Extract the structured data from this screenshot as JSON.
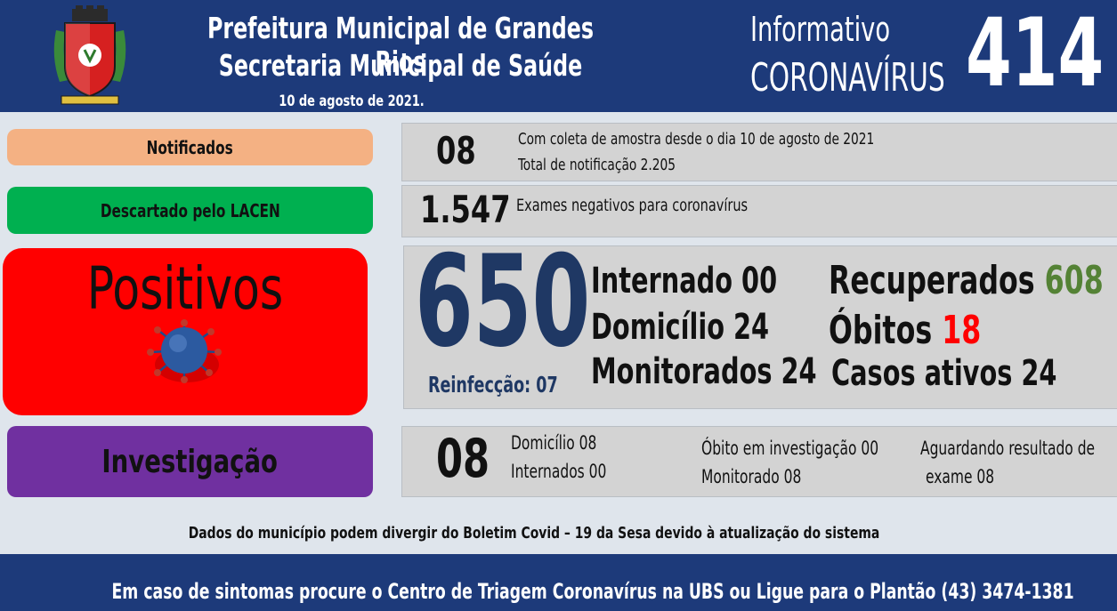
{
  "header": {
    "line1": "Prefeitura Municipal de Grandes Rios",
    "line2": "Secretaria Municipal de Saúde",
    "date": "10 de agosto  de 2021.",
    "info_line1": "Informativo",
    "info_line2": "CORONAVÍRUS",
    "number": "414"
  },
  "notificados": {
    "label": "Notificados",
    "value": "08",
    "line1": "Com coleta de amostra desde o dia 10 de agosto de 2021",
    "line2": "Total de notificação  2.205"
  },
  "descartado": {
    "label": "Descartado  pelo  LACEN",
    "value": "1.547",
    "text": "Exames negativos  para coronavírus"
  },
  "positivos": {
    "label": "Positivos",
    "value": "650",
    "reinfeccao": "Reinfecção:  07",
    "internado": "Internado 00",
    "domicilio": "Domicílio 24",
    "monitorados": "Monitorados 24",
    "recuperados_label": "Recuperados",
    "recuperados_value": "608",
    "obitos_label": "Óbitos",
    "obitos_value": "18",
    "casos_ativos": "Casos ativos 24"
  },
  "investigacao": {
    "label": "Investigação",
    "value": "08",
    "domicilio": "Domicílio 08",
    "internados": "Internados 00",
    "obito": "Óbito  em investigação  00",
    "monitorado": "Monitorado  08",
    "aguardando1": "Aguardando resultado de",
    "aguardando2": "exame 08"
  },
  "disclaimer": "Dados  do  município  podem  divergir  do  Boletim  Covid – 19  da  Sesa  devido  à  atualização  do  sistema",
  "footer": "Em  caso  de  sintomas  procure  o  Centro  de  Triagem  Coronavírus  na  UBS  ou  Ligue  para  o  Plantão  (43) 3474-1381",
  "colors": {
    "header_bg": "#1d3a7a",
    "notificados": "#f4b183",
    "descartado": "#00b050",
    "positivos": "#ff0000",
    "investigacao": "#7030a0",
    "recuperados": "#548235",
    "obitos": "#ff0000",
    "big_number": "#1f3864"
  },
  "icons": [
    "municipal-crest-icon",
    "coronavirus-icon"
  ]
}
